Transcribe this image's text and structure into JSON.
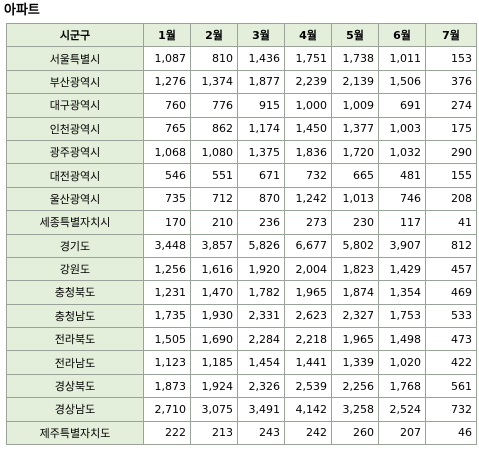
{
  "title": "아파트",
  "table": {
    "headers": [
      "시군구",
      "1월",
      "2월",
      "3월",
      "4월",
      "5월",
      "6월",
      "7월"
    ],
    "rows": [
      {
        "region": "서울특별시",
        "values": [
          "1,087",
          "810",
          "1,436",
          "1,751",
          "1,738",
          "1,011",
          "153"
        ]
      },
      {
        "region": "부산광역시",
        "values": [
          "1,276",
          "1,374",
          "1,877",
          "2,239",
          "2,139",
          "1,506",
          "376"
        ]
      },
      {
        "region": "대구광역시",
        "values": [
          "760",
          "776",
          "915",
          "1,000",
          "1,009",
          "691",
          "274"
        ]
      },
      {
        "region": "인천광역시",
        "values": [
          "765",
          "862",
          "1,174",
          "1,450",
          "1,377",
          "1,003",
          "175"
        ]
      },
      {
        "region": "광주광역시",
        "values": [
          "1,068",
          "1,080",
          "1,375",
          "1,836",
          "1,720",
          "1,032",
          "290"
        ]
      },
      {
        "region": "대전광역시",
        "values": [
          "546",
          "551",
          "671",
          "732",
          "665",
          "481",
          "155"
        ]
      },
      {
        "region": "울산광역시",
        "values": [
          "735",
          "712",
          "870",
          "1,242",
          "1,013",
          "746",
          "208"
        ]
      },
      {
        "region": "세종특별자치시",
        "values": [
          "170",
          "210",
          "236",
          "273",
          "230",
          "117",
          "41"
        ]
      },
      {
        "region": "경기도",
        "values": [
          "3,448",
          "3,857",
          "5,826",
          "6,677",
          "5,802",
          "3,907",
          "812"
        ]
      },
      {
        "region": "강원도",
        "values": [
          "1,256",
          "1,616",
          "1,920",
          "2,004",
          "1,823",
          "1,429",
          "457"
        ]
      },
      {
        "region": "충청북도",
        "values": [
          "1,231",
          "1,470",
          "1,782",
          "1,965",
          "1,874",
          "1,354",
          "469"
        ]
      },
      {
        "region": "충청남도",
        "values": [
          "1,735",
          "1,930",
          "2,331",
          "2,623",
          "2,327",
          "1,753",
          "533"
        ]
      },
      {
        "region": "전라북도",
        "values": [
          "1,505",
          "1,690",
          "2,284",
          "2,218",
          "1,965",
          "1,498",
          "473"
        ]
      },
      {
        "region": "전라남도",
        "values": [
          "1,123",
          "1,185",
          "1,454",
          "1,441",
          "1,339",
          "1,020",
          "422"
        ]
      },
      {
        "region": "경상북도",
        "values": [
          "1,873",
          "1,924",
          "2,326",
          "2,539",
          "2,256",
          "1,768",
          "561"
        ]
      },
      {
        "region": "경상남도",
        "values": [
          "2,710",
          "3,075",
          "3,491",
          "4,142",
          "3,258",
          "2,524",
          "732"
        ]
      },
      {
        "region": "제주특별자치도",
        "values": [
          "222",
          "213",
          "243",
          "242",
          "260",
          "207",
          "46"
        ]
      }
    ]
  },
  "colors": {
    "header_bg": "#e3efda",
    "border": "#9aa39a"
  }
}
